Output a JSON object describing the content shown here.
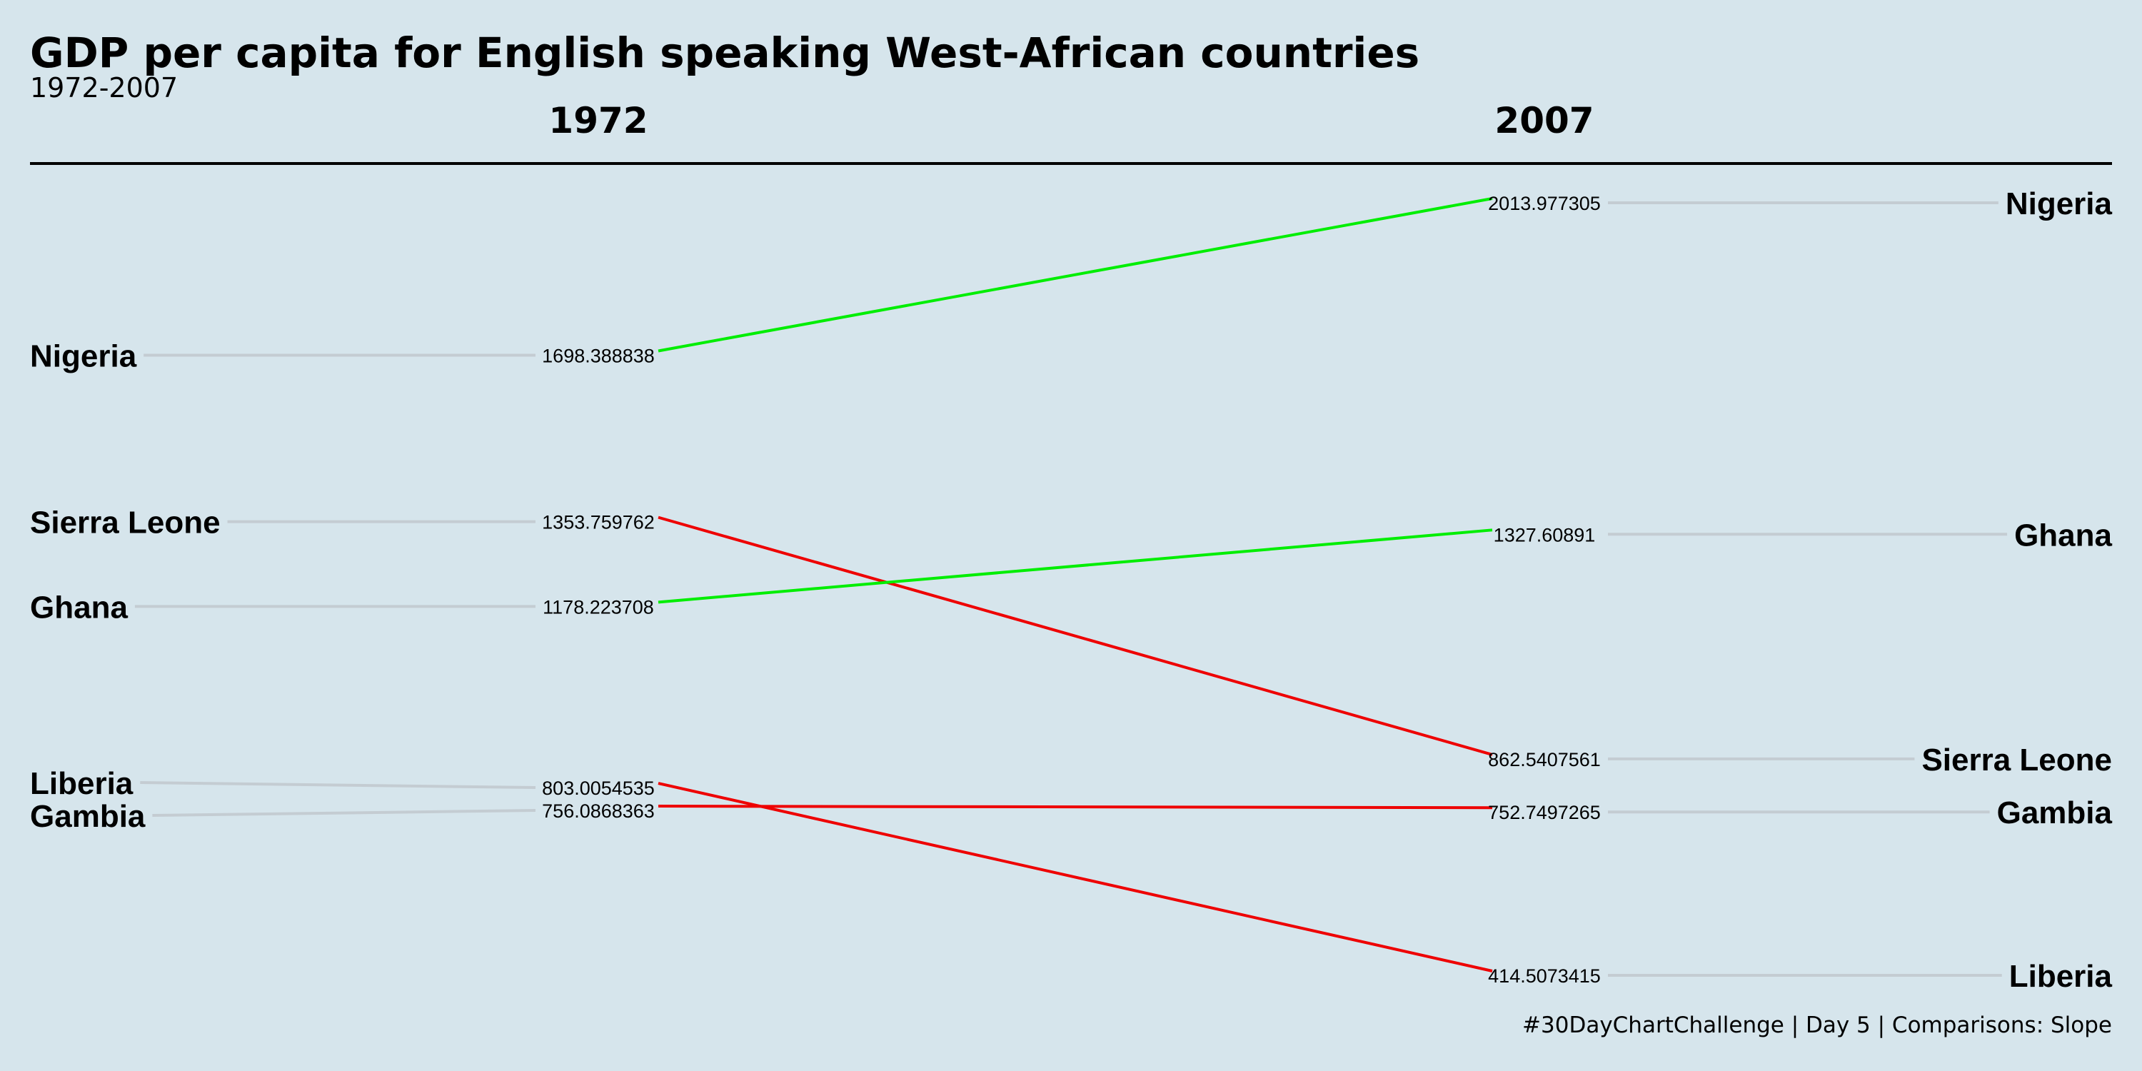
{
  "title": "GDP per capita for English speaking West-African countries",
  "subtitle": "1972-2007",
  "caption": "#30DayChartChallenge | Day 5 | Comparisons: Slope",
  "colors": {
    "background": "#d6e5ec",
    "increase": "#00ee00",
    "decrease": "#ee0000",
    "guide": "#c4ccd2",
    "rule": "#000000",
    "text": "#000000"
  },
  "chart_data": {
    "type": "slope",
    "x": [
      "1972",
      "2007"
    ],
    "series": [
      {
        "name": "Nigeria",
        "values": [
          1698.388838,
          2013.977305
        ],
        "labels": [
          "1698.388838",
          "2013.977305"
        ],
        "change": "increase"
      },
      {
        "name": "Sierra Leone",
        "values": [
          1353.759762,
          862.5407561
        ],
        "labels": [
          "1353.759762",
          "862.5407561"
        ],
        "change": "decrease"
      },
      {
        "name": "Ghana",
        "values": [
          1178.223708,
          1327.60891
        ],
        "labels": [
          "1178.223708",
          "1327.60891"
        ],
        "change": "increase"
      },
      {
        "name": "Liberia",
        "values": [
          803.0054535,
          414.5073415
        ],
        "labels": [
          "803.0054535",
          "414.5073415"
        ],
        "change": "decrease"
      },
      {
        "name": "Gambia",
        "values": [
          756.0868363,
          752.7497265
        ],
        "labels": [
          "756.0868363",
          "752.7497265"
        ],
        "change": "decrease"
      }
    ],
    "ylim": [
      414.5073415,
      2013.977305
    ],
    "legend": "none",
    "grid": false
  }
}
